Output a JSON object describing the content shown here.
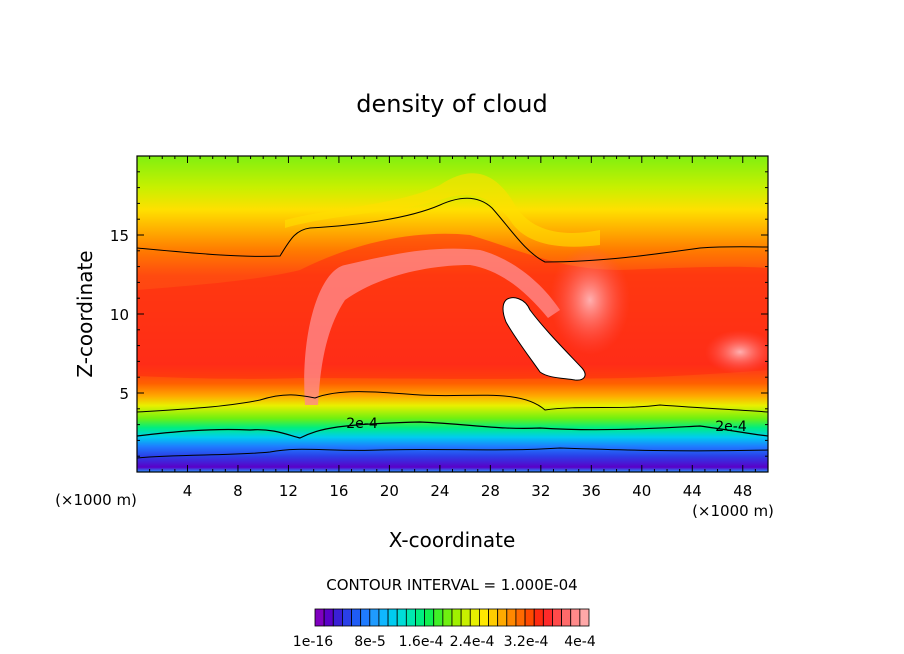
{
  "chart_data": {
    "type": "heatmap",
    "title": "density of cloud",
    "xlabel": "X-coordinate",
    "ylabel": "Z-coordinate",
    "x_unit_left": "(×1000 m)",
    "x_unit_right": "(×1000 m)",
    "xlim": [
      0,
      50
    ],
    "ylim": [
      0,
      20
    ],
    "x_ticks": [
      4,
      8,
      12,
      16,
      20,
      24,
      28,
      32,
      36,
      40,
      44,
      48
    ],
    "y_ticks": [
      5,
      10,
      15
    ],
    "contour_interval_text": "CONTOUR INTERVAL = 1.000E-04",
    "contour_line_labels": [
      {
        "text": "2e-4",
        "x": 18,
        "z": 3.1
      },
      {
        "text": "2e-4",
        "x": 46.5,
        "z": 3.0
      }
    ],
    "colorbar": {
      "colors": [
        "#7f00bf",
        "#5a00c8",
        "#3a1fd6",
        "#2a40e8",
        "#1f5cf5",
        "#1f7bff",
        "#1f9bff",
        "#10b7ff",
        "#00ccf0",
        "#00ddd8",
        "#00e8b0",
        "#00ee80",
        "#10f050",
        "#40f028",
        "#70f010",
        "#a0f000",
        "#c8f000",
        "#e8f000",
        "#ffe800",
        "#ffcc00",
        "#ffaa00",
        "#ff8800",
        "#ff6a00",
        "#ff4a00",
        "#ff2a10",
        "#ff2a2a",
        "#ff4a4a",
        "#ff6a6a",
        "#ff8a8a",
        "#ffa8a8"
      ],
      "tick_labels": [
        "1e-16",
        "8e-5",
        "1.6e-4",
        "2.4e-4",
        "3.2e-4",
        "4e-4"
      ]
    }
  }
}
